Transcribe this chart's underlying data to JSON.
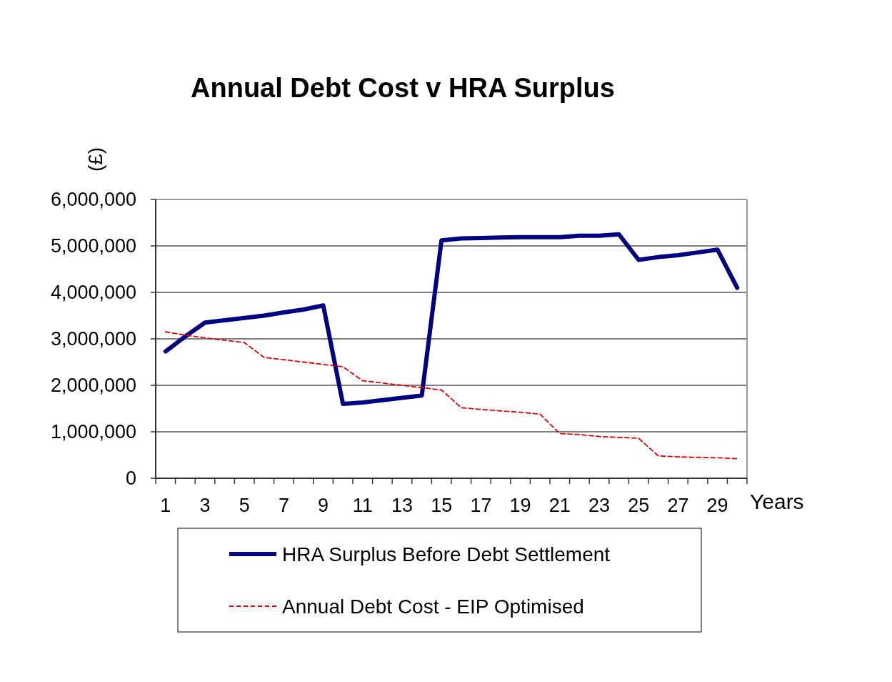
{
  "chart_data": {
    "type": "line",
    "title": "Annual Debt Cost v HRA Surplus",
    "ylabel": "(£)",
    "xlabel": "Years",
    "x": [
      1,
      2,
      3,
      4,
      5,
      6,
      7,
      8,
      9,
      10,
      11,
      12,
      13,
      14,
      15,
      16,
      17,
      18,
      19,
      20,
      21,
      22,
      23,
      24,
      25,
      26,
      27,
      28,
      29,
      30
    ],
    "xlim": [
      0.5,
      30.5
    ],
    "xticks": [
      1,
      3,
      5,
      7,
      9,
      11,
      13,
      15,
      17,
      19,
      21,
      23,
      25,
      27,
      29,
      {
        "value": 0.5,
        "label": null
      },
      {
        "value": 1.5,
        "label": null
      },
      {
        "value": 2.5,
        "label": null
      },
      {
        "value": 3.5,
        "label": null
      },
      {
        "value": 4.5,
        "label": null
      },
      {
        "value": 5.5,
        "label": null
      },
      {
        "value": 6.5,
        "label": null
      },
      {
        "value": 7.5,
        "label": null
      },
      {
        "value": 8.5,
        "label": null
      },
      {
        "value": 9.5,
        "label": null
      },
      {
        "value": 10.5,
        "label": null
      },
      {
        "value": 11.5,
        "label": null
      },
      {
        "value": 12.5,
        "label": null
      },
      {
        "value": 13.5,
        "label": null
      },
      {
        "value": 14.5,
        "label": null
      },
      {
        "value": 15.5,
        "label": null
      },
      {
        "value": 16.5,
        "label": null
      },
      {
        "value": 17.5,
        "label": null
      },
      {
        "value": 18.5,
        "label": null
      },
      {
        "value": 19.5,
        "label": null
      },
      {
        "value": 20.5,
        "label": null
      },
      {
        "value": 21.5,
        "label": null
      },
      {
        "value": 22.5,
        "label": null
      },
      {
        "value": 23.5,
        "label": null
      },
      {
        "value": 24.5,
        "label": null
      },
      {
        "value": 25.5,
        "label": null
      },
      {
        "value": 26.5,
        "label": null
      },
      {
        "value": 27.5,
        "label": null
      },
      {
        "value": 28.5,
        "label": null
      },
      {
        "value": 29.5,
        "label": null
      },
      {
        "value": 30.5,
        "label": null
      }
    ],
    "series": [
      {
        "name": "HRA Surplus Before Debt Settlement",
        "color": "#000080",
        "line_style": "solid",
        "values": [
          2730000,
          3050000,
          3350000,
          3400000,
          3450000,
          3500000,
          3570000,
          3630000,
          3720000,
          1600000,
          1630000,
          1680000,
          1730000,
          1780000,
          5120000,
          5160000,
          5170000,
          5180000,
          5190000,
          5190000,
          5190000,
          5220000,
          5220000,
          5250000,
          4700000,
          4760000,
          4800000,
          4860000,
          4920000,
          4100000
        ]
      },
      {
        "name": "Annual Debt Cost - EIP Optimised",
        "color": "#dd0000",
        "line_style": "dashed",
        "values": [
          3150000,
          3080000,
          3020000,
          2970000,
          2920000,
          2600000,
          2550000,
          2500000,
          2450000,
          2400000,
          2100000,
          2050000,
          2000000,
          1950000,
          1900000,
          1520000,
          1480000,
          1450000,
          1420000,
          1380000,
          960000,
          940000,
          900000,
          880000,
          860000,
          480000,
          460000,
          450000,
          440000,
          420000
        ]
      }
    ],
    "ylim": [
      0,
      6000000
    ],
    "yticks": [
      0,
      {
        "value": 1000000,
        "label": "1,000,000"
      },
      {
        "value": 2000000,
        "label": "2,000,000"
      },
      {
        "value": 3000000,
        "label": "3,000,000"
      },
      {
        "value": 4000000,
        "label": "4,000,000"
      },
      {
        "value": 5000000,
        "label": "5,000,000"
      },
      {
        "value": 6000000,
        "label": "6,000,000"
      }
    ],
    "grid": "y",
    "legend": "bottom",
    "marker": "none"
  }
}
